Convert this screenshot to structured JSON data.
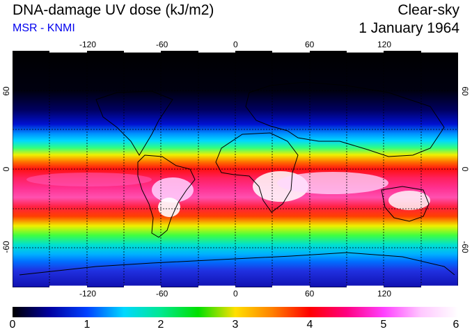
{
  "header": {
    "title": "DNA-damage UV dose (kJ/m2)",
    "source": "MSR - KNMI",
    "mode": "Clear-sky",
    "date": "1 January 1964"
  },
  "map": {
    "lon_ticks": [
      "-120",
      "-60",
      "0",
      "60",
      "120"
    ],
    "lat_ticks": [
      "60",
      "0",
      "-60"
    ]
  },
  "colorbar": {
    "labels": [
      "0",
      "1",
      "2",
      "3",
      "4",
      "5",
      "6"
    ],
    "stops": [
      "#000000",
      "#0000a0",
      "#0040ff",
      "#00d8ff",
      "#00e890",
      "#00e000",
      "#ffe000",
      "#ff8000",
      "#ff0000",
      "#ff0080",
      "#ff40ff",
      "#ffc8ff",
      "#ffffff"
    ]
  }
}
